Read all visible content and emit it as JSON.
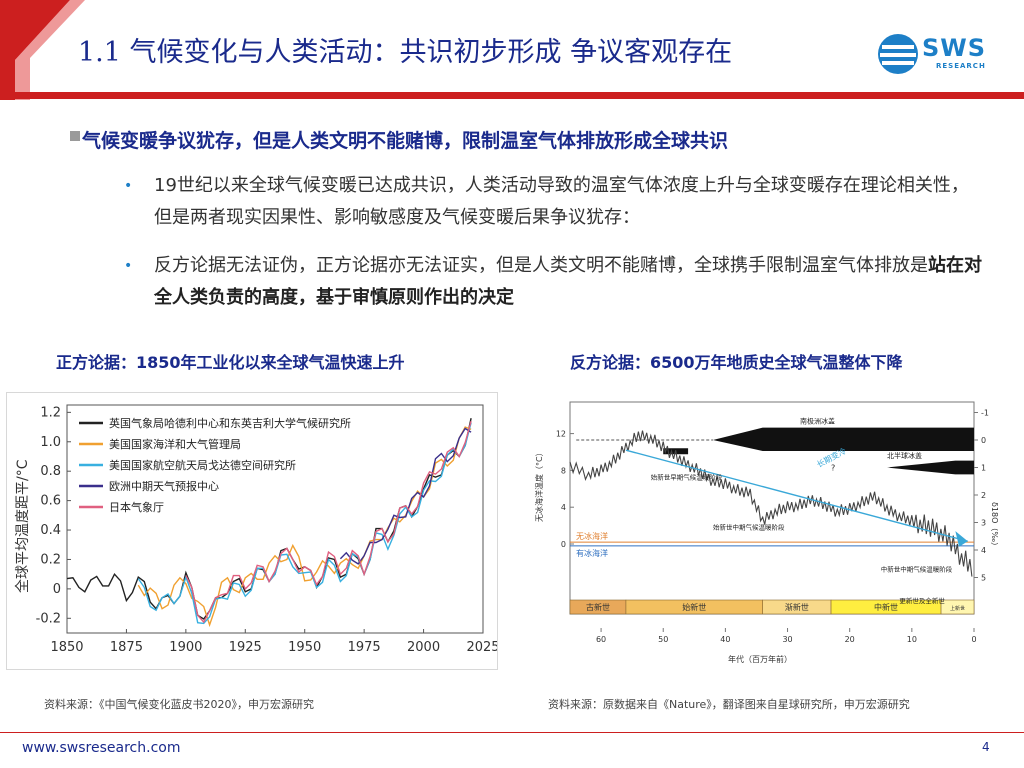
{
  "title": "1.1 气候变化与人类活动：共识初步形成 争议客观存在",
  "logo": {
    "text": "SWS",
    "sub": "RESEARCH"
  },
  "heading": "气候变暖争议犹存，但是人类文明不能赌博，限制温室气体排放形成全球共识",
  "bullets": [
    {
      "text": "19世纪以来全球气候变暖已达成共识，人类活动导致的温室气体浓度上升与全球变暖存在理论相关性，但是两者现实因果性、影响敏感度及气候变暖后果争议犹存："
    },
    {
      "text": "反方论据无法证伪，正方论据亦无法证实，但是人类文明不能赌博，全球携手限制温室气体排放是",
      "bold": "站在对全人类负责的高度，基于审慎原则作出的决定"
    }
  ],
  "caption_left": "正方论据：1850年工业化以来全球气温快速上升",
  "caption_right": "反方论据：6500万年地质史全球气温整体下降",
  "source_left": "资料来源：《中国气候变化蓝皮书2020》，申万宏源研究",
  "source_right": "资料来源：原数据来自《Nature》，翻译图来自星球研究所，申万宏源研究",
  "footer_url": "www.swsresearch.com",
  "page_number": "4",
  "chart_data": [
    {
      "type": "line",
      "ylabel": "全球平均温度距平/°C",
      "x_ticks": [
        1850,
        1875,
        1900,
        1925,
        1950,
        1975,
        2000,
        2025
      ],
      "y_ticks": [
        "1.2",
        "1.0",
        "0.8",
        "0.6",
        "0.4",
        "0.2",
        "0",
        "-0.2"
      ],
      "xlim": [
        1850,
        2025
      ],
      "ylim": [
        -0.3,
        1.25
      ],
      "legend_position": "top-left",
      "series": [
        {
          "name": "英国气象局哈德利中心和东英吉利大学气候研究所",
          "color": "#222222"
        },
        {
          "name": "美国国家海洋和大气管理局",
          "color": "#f0a030"
        },
        {
          "name": "美国国家航空航天局戈达德空间研究所",
          "color": "#38b0e0"
        },
        {
          "name": "欧洲中期天气预报中心",
          "color": "#3a2f8c"
        },
        {
          "name": "日本气象厅",
          "color": "#e06080"
        }
      ],
      "x": [
        1850,
        1855,
        1860,
        1865,
        1870,
        1875,
        1880,
        1885,
        1890,
        1895,
        1900,
        1905,
        1910,
        1915,
        1920,
        1925,
        1930,
        1935,
        1940,
        1945,
        1950,
        1955,
        1960,
        1965,
        1970,
        1975,
        1980,
        1985,
        1990,
        1995,
        2000,
        2005,
        2010,
        2015,
        2020
      ],
      "y": [
        0.03,
        0.06,
        0.0,
        0.05,
        0.05,
        -0.02,
        0.05,
        -0.05,
        -0.1,
        -0.05,
        0.05,
        -0.15,
        -0.2,
        0.0,
        0.02,
        0.02,
        0.1,
        0.1,
        0.2,
        0.23,
        0.1,
        0.07,
        0.18,
        0.12,
        0.2,
        0.15,
        0.35,
        0.35,
        0.5,
        0.55,
        0.65,
        0.8,
        0.87,
        0.95,
        1.1
      ]
    },
    {
      "type": "line",
      "ylabel_left": "无冰海洋温度（°C）",
      "ylabel_right": "δ18O（‰）",
      "xlabel": "年代（百万年前）",
      "x_ticks": [
        60,
        50,
        40,
        30,
        20,
        10,
        0
      ],
      "y_ticks_left": [
        12,
        8,
        4,
        0
      ],
      "y_ticks_right": [
        -1,
        0,
        1,
        2,
        3,
        4,
        5
      ],
      "xlim": [
        65,
        0
      ],
      "epochs": [
        "古新世",
        "始新世",
        "渐新世",
        "中新世",
        "上新世"
      ],
      "ice_labels": [
        "南极洲冰盖",
        "北半球冰盖"
      ],
      "annotations": [
        "长期变冷",
        "始新世早期气候温暖阶段",
        "始新世中期气候温暖阶段",
        "中新世中期气候温暖阶段",
        "更新世及全新世",
        "?"
      ],
      "ocean_labels": [
        "无冰海洋",
        "有冰海洋"
      ],
      "x": [
        65,
        62,
        60,
        58,
        56,
        54,
        52,
        50,
        48,
        46,
        44,
        42,
        40,
        38,
        36,
        34,
        32,
        30,
        28,
        26,
        24,
        22,
        20,
        18,
        16,
        14,
        12,
        10,
        8,
        6,
        4,
        2,
        0
      ],
      "y": [
        8.5,
        7.5,
        8.0,
        9.0,
        10.5,
        11.8,
        11.5,
        10.5,
        9.5,
        8.6,
        7.8,
        6.8,
        6.5,
        5.8,
        5.5,
        2.5,
        3.5,
        4.0,
        4.2,
        4.8,
        4.2,
        3.5,
        3.8,
        4.5,
        5.2,
        3.8,
        3.0,
        2.5,
        2.0,
        1.5,
        0.5,
        -1.5,
        -2.8
      ]
    }
  ]
}
